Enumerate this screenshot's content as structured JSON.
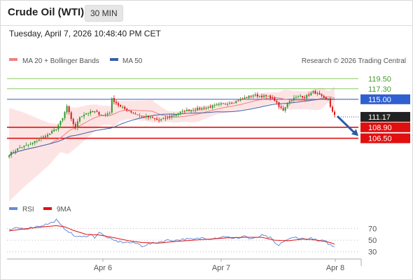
{
  "header": {
    "title": "Crude Oil (WTI)",
    "timeframe": "30 MIN",
    "timestamp": "Tuesday, April 7, 2026 10:48:40 PM CET"
  },
  "legend": {
    "ma20": "MA 20 + Bollinger Bands",
    "ma50": "MA 50",
    "credit": "Research © 2026 Trading Central",
    "rsi": "RSI",
    "rsi_ma": "9MA"
  },
  "colors": {
    "bull": "#2a9a2a",
    "bear": "#d91a1a",
    "ma20": "#f08080",
    "ma50": "#3a5fa8",
    "band": "#fde4e4",
    "resistance": "#8cc86a",
    "pivot": "#2f5fd0",
    "support": "#e01010",
    "current": "#222222",
    "arrow": "#2a5aa8",
    "rsi": "#6a8ad8",
    "rsi_ma": "#e01010"
  },
  "chart_data": [
    {
      "type": "line",
      "subtype": "candlestick",
      "x_ticks": [
        "Apr 6",
        "Apr 7",
        "Apr 8"
      ],
      "ylim": [
        93,
        122
      ],
      "current_price": "111.17",
      "levels": [
        {
          "value": 119.5,
          "label": "119.50",
          "kind": "resistance"
        },
        {
          "value": 117.3,
          "label": "117.30",
          "kind": "resistance"
        },
        {
          "value": 115.0,
          "label": "115.00",
          "kind": "pivot"
        },
        {
          "value": 108.9,
          "label": "108.90",
          "kind": "support"
        },
        {
          "value": 106.5,
          "label": "106.50",
          "kind": "support"
        }
      ],
      "arrow": {
        "from": 111.3,
        "to": 107.0,
        "direction": "down"
      },
      "close_path": [
        [
          0,
          103.0
        ],
        [
          5,
          104.5
        ],
        [
          10,
          105.2
        ],
        [
          14,
          106.3
        ],
        [
          18,
          107.2
        ],
        [
          22,
          108.6
        ],
        [
          25,
          110.8
        ],
        [
          27,
          113.5
        ],
        [
          29,
          110.5
        ],
        [
          31,
          108.8
        ],
        [
          33,
          111.2
        ],
        [
          36,
          112.0
        ],
        [
          40,
          112.3
        ],
        [
          44,
          111.4
        ],
        [
          47,
          112.2
        ],
        [
          48,
          115.0
        ],
        [
          50,
          114.2
        ],
        [
          52,
          113.3
        ],
        [
          55,
          112.7
        ],
        [
          58,
          112.0
        ],
        [
          62,
          111.3
        ],
        [
          66,
          111.0
        ],
        [
          70,
          110.4
        ],
        [
          74,
          111.0
        ],
        [
          78,
          111.8
        ],
        [
          82,
          112.5
        ],
        [
          86,
          112.8
        ],
        [
          90,
          113.0
        ],
        [
          94,
          113.4
        ],
        [
          98,
          113.8
        ],
        [
          102,
          114.2
        ],
        [
          106,
          114.6
        ],
        [
          110,
          115.3
        ],
        [
          114,
          115.9
        ],
        [
          118,
          115.7
        ],
        [
          122,
          115.5
        ],
        [
          124,
          114.8
        ],
        [
          126,
          113.3
        ],
        [
          128,
          112.7
        ],
        [
          130,
          114.2
        ],
        [
          132,
          115.0
        ],
        [
          134,
          115.4
        ],
        [
          136,
          115.8
        ],
        [
          138,
          115.5
        ],
        [
          140,
          116.0
        ],
        [
          142,
          116.6
        ],
        [
          144,
          116.2
        ],
        [
          146,
          115.5
        ],
        [
          148,
          114.8
        ],
        [
          149,
          115.1
        ],
        [
          150,
          113.5
        ],
        [
          151,
          112.2
        ],
        [
          152,
          111.4
        ]
      ]
    },
    {
      "type": "line",
      "title": "RSI",
      "ylim": [
        20,
        90
      ],
      "y_ticks": [
        "70",
        "50",
        "30"
      ],
      "series": [
        {
          "name": "RSI",
          "values": [
            [
              0,
              67
            ],
            [
              4,
              71
            ],
            [
              8,
              70
            ],
            [
              12,
              73
            ],
            [
              16,
              76
            ],
            [
              20,
              80
            ],
            [
              22,
              85
            ],
            [
              24,
              76
            ],
            [
              26,
              70
            ],
            [
              28,
              65
            ],
            [
              30,
              58
            ],
            [
              34,
              55
            ],
            [
              38,
              60
            ],
            [
              40,
              55
            ],
            [
              42,
              64
            ],
            [
              44,
              58
            ],
            [
              46,
              55
            ],
            [
              48,
              50
            ],
            [
              52,
              47
            ],
            [
              56,
              46
            ],
            [
              60,
              44
            ],
            [
              62,
              40
            ],
            [
              64,
              42
            ],
            [
              66,
              44
            ],
            [
              68,
              45
            ],
            [
              70,
              47
            ],
            [
              74,
              50
            ],
            [
              78,
              50
            ],
            [
              82,
              52
            ],
            [
              86,
              51
            ],
            [
              90,
              54
            ],
            [
              94,
              53
            ],
            [
              98,
              55
            ],
            [
              102,
              57
            ],
            [
              104,
              52
            ],
            [
              108,
              55
            ],
            [
              110,
              58
            ],
            [
              112,
              53
            ],
            [
              114,
              52
            ],
            [
              118,
              58
            ],
            [
              122,
              54
            ],
            [
              124,
              45
            ],
            [
              126,
              40
            ],
            [
              128,
              48
            ],
            [
              130,
              51
            ],
            [
              134,
              55
            ],
            [
              138,
              52
            ],
            [
              142,
              53
            ],
            [
              144,
              48
            ],
            [
              146,
              49
            ],
            [
              148,
              47
            ],
            [
              150,
              42
            ],
            [
              152,
              38
            ]
          ]
        },
        {
          "name": "9MA",
          "values": [
            [
              0,
              66
            ],
            [
              8,
              70
            ],
            [
              16,
              73
            ],
            [
              22,
              75
            ],
            [
              26,
              73
            ],
            [
              30,
              67
            ],
            [
              36,
              60
            ],
            [
              42,
              59
            ],
            [
              48,
              55
            ],
            [
              56,
              49
            ],
            [
              62,
              46
            ],
            [
              70,
              45
            ],
            [
              78,
              48
            ],
            [
              86,
              50
            ],
            [
              94,
              52
            ],
            [
              102,
              54
            ],
            [
              110,
              55
            ],
            [
              118,
              55
            ],
            [
              124,
              50
            ],
            [
              130,
              49
            ],
            [
              138,
              52
            ],
            [
              144,
              50
            ],
            [
              150,
              46
            ],
            [
              152,
              43
            ]
          ]
        }
      ]
    }
  ]
}
